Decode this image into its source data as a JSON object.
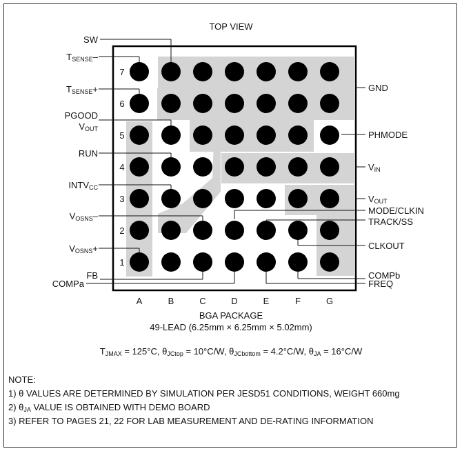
{
  "top_view": "TOP VIEW",
  "columns": [
    "A",
    "B",
    "C",
    "D",
    "E",
    "F",
    "G"
  ],
  "rows": [
    "7",
    "6",
    "5",
    "4",
    "3",
    "2",
    "1"
  ],
  "package": {
    "name": "BGA PACKAGE",
    "leads": "49-LEAD (6.25mm × 6.25mm × 5.02mm)"
  },
  "thermal": {
    "tjmax_pre": "T",
    "tjmax_sub": "JMAX",
    "tjmax_val": " = 125°C, ",
    "jctop_pre": "θ",
    "jctop_sub": "JCtop",
    "jctop_val": " = 10°C/W, ",
    "jcbot_pre": "θ",
    "jcbot_sub": "JCbottom",
    "jcbot_val": " = 4.2°C/W, ",
    "ja_pre": "θ",
    "ja_sub": "JA",
    "ja_val": " = 16°C/W"
  },
  "notes": {
    "heading": "NOTE:",
    "n1": "1) θ VALUES ARE DETERMINED BY SIMULATION PER JESD51 CONDITIONS, WEIGHT 660mg",
    "n2_pre": "2) θ",
    "n2_sub": "JA",
    "n2_post": " VALUE IS OBTAINED WITH DEMO BOARD",
    "n3": "3) REFER TO PAGES 21, 22 FOR LAB MEASUREMENT AND DE-RATING INFORMATION"
  },
  "pins_left": {
    "sw": "SW",
    "tsense_minus_main": "T",
    "tsense_minus_sub": "SENSE",
    "tsense_minus_suffix": "–",
    "tsense_plus_main": "T",
    "tsense_plus_sub": "SENSE",
    "tsense_plus_suffix": "+",
    "pgood": "PGOOD",
    "vout_main": "V",
    "vout_sub": "OUT",
    "run": "RUN",
    "intvcc_main": "INTV",
    "intvcc_sub": "CC",
    "vosns_minus_main": "V",
    "vosns_minus_sub": "OSNS",
    "vosns_minus_suffix": "–",
    "vosns_plus_main": "V",
    "vosns_plus_sub": "OSNS",
    "vosns_plus_suffix": "+",
    "fb": "FB",
    "compa": "COMPa"
  },
  "pins_right": {
    "gnd": "GND",
    "phmode": "PHMODE",
    "vin_main": "V",
    "vin_sub": "IN",
    "vout_main": "V",
    "vout_sub": "OUT",
    "mode_clkin": "MODE/CLKIN",
    "track_ss": "TRACK/SS",
    "clkout": "CLKOUT",
    "compb": "COMPb",
    "freq": "FREQ"
  },
  "colors": {
    "region": "#d4d4d4",
    "ball": "#000000",
    "line": "#111111"
  }
}
